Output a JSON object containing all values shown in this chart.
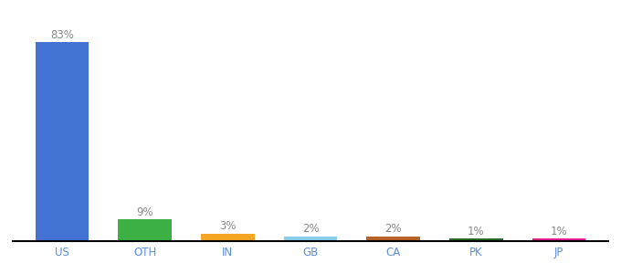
{
  "categories": [
    "US",
    "OTH",
    "IN",
    "GB",
    "CA",
    "PK",
    "JP"
  ],
  "values": [
    83,
    9,
    3,
    2,
    2,
    1,
    1
  ],
  "labels": [
    "83%",
    "9%",
    "3%",
    "2%",
    "2%",
    "1%",
    "1%"
  ],
  "bar_colors": [
    "#4472d4",
    "#3cb043",
    "#f5a623",
    "#87ceeb",
    "#b8622a",
    "#2d6a2d",
    "#e91e8c"
  ],
  "background_color": "#ffffff",
  "ylim": [
    0,
    95
  ],
  "label_fontsize": 8.5,
  "tick_fontsize": 8.5,
  "tick_color": "#5b8dd9",
  "label_color": "#888888",
  "bar_width": 0.65
}
